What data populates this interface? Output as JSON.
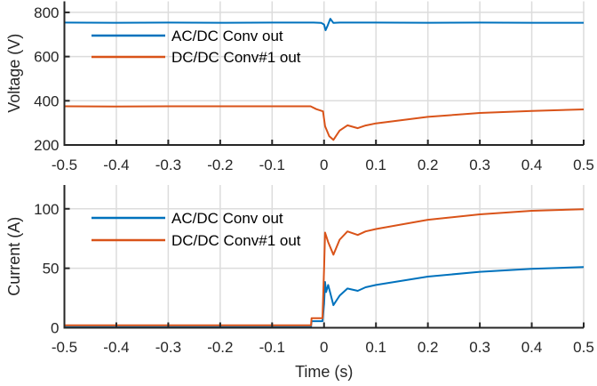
{
  "chart_data": [
    {
      "type": "line",
      "title": "",
      "xlabel": "",
      "ylabel": "Voltage (V)",
      "xlim": [
        -0.5,
        0.5
      ],
      "ylim": [
        200,
        850
      ],
      "xticks": [
        -0.5,
        -0.4,
        -0.3,
        -0.2,
        -0.1,
        0,
        0.1,
        0.2,
        0.3,
        0.4,
        0.5
      ],
      "xtick_labels": [
        "-0.5",
        "-0.4",
        "-0.3",
        "-0.2",
        "-0.1",
        "0",
        "0.1",
        "0.2",
        "0.3",
        "0.4",
        "0.5"
      ],
      "yticks": [
        200,
        400,
        600,
        800
      ],
      "ytick_labels": [
        "200",
        "400",
        "600",
        "800"
      ],
      "grid": true,
      "legend_position": "upper-left",
      "series": [
        {
          "name": "AC/DC Conv out",
          "color": "#0072BD",
          "x": [
            -0.5,
            -0.4,
            -0.3,
            -0.2,
            -0.1,
            -0.02,
            -0.005,
            0.0,
            0.003,
            0.007,
            0.012,
            0.018,
            0.03,
            0.1,
            0.2,
            0.3,
            0.4,
            0.5
          ],
          "y": [
            754,
            753,
            754,
            753,
            754,
            754,
            752,
            745,
            719,
            740,
            771,
            752,
            754,
            754,
            753,
            754,
            753,
            753
          ]
        },
        {
          "name": "DC/DC Conv#1 out",
          "color": "#D95319",
          "x": [
            -0.5,
            -0.4,
            -0.3,
            -0.2,
            -0.1,
            -0.026,
            -0.015,
            -0.002,
            0.002,
            0.01,
            0.018,
            0.03,
            0.045,
            0.065,
            0.08,
            0.1,
            0.2,
            0.3,
            0.4,
            0.5
          ],
          "y": [
            375,
            374,
            375,
            375,
            375,
            375,
            362,
            352,
            285,
            240,
            223,
            265,
            289,
            276,
            288,
            298,
            327,
            345,
            354,
            361
          ]
        }
      ]
    },
    {
      "type": "line",
      "title": "",
      "xlabel": "Time (s)",
      "ylabel": "Current (A)",
      "xlim": [
        -0.5,
        0.5
      ],
      "ylim": [
        0,
        120
      ],
      "xticks": [
        -0.5,
        -0.4,
        -0.3,
        -0.2,
        -0.1,
        0,
        0.1,
        0.2,
        0.3,
        0.4,
        0.5
      ],
      "xtick_labels": [
        "-0.5",
        "-0.4",
        "-0.3",
        "-0.2",
        "-0.1",
        "0",
        "0.1",
        "0.2",
        "0.3",
        "0.4",
        "0.5"
      ],
      "yticks": [
        0,
        50,
        100
      ],
      "ytick_labels": [
        "0",
        "50",
        "100"
      ],
      "grid": true,
      "legend_position": "upper-left",
      "series": [
        {
          "name": "AC/DC Conv out",
          "color": "#0072BD",
          "x": [
            -0.5,
            -0.3,
            -0.1,
            -0.025,
            -0.024,
            -0.003,
            0.0,
            0.002,
            0.004,
            0.008,
            0.018,
            0.03,
            0.045,
            0.065,
            0.08,
            0.1,
            0.2,
            0.3,
            0.4,
            0.5
          ],
          "y": [
            0.5,
            0.5,
            0.5,
            0.5,
            5.5,
            5.5,
            20,
            38.5,
            30,
            36,
            19,
            27,
            33,
            31,
            34,
            36,
            43,
            47,
            49.5,
            51
          ]
        },
        {
          "name": "DC/DC Conv#1 out",
          "color": "#D95319",
          "x": [
            -0.5,
            -0.3,
            -0.1,
            -0.025,
            -0.024,
            -0.003,
            0.0,
            0.002,
            0.008,
            0.018,
            0.03,
            0.045,
            0.065,
            0.08,
            0.1,
            0.2,
            0.3,
            0.4,
            0.5
          ],
          "y": [
            2,
            2,
            2,
            2,
            8,
            8,
            50,
            80,
            72,
            61.4,
            74,
            81,
            78,
            81,
            83,
            90.8,
            95.3,
            98.3,
            99.7
          ]
        }
      ]
    }
  ]
}
